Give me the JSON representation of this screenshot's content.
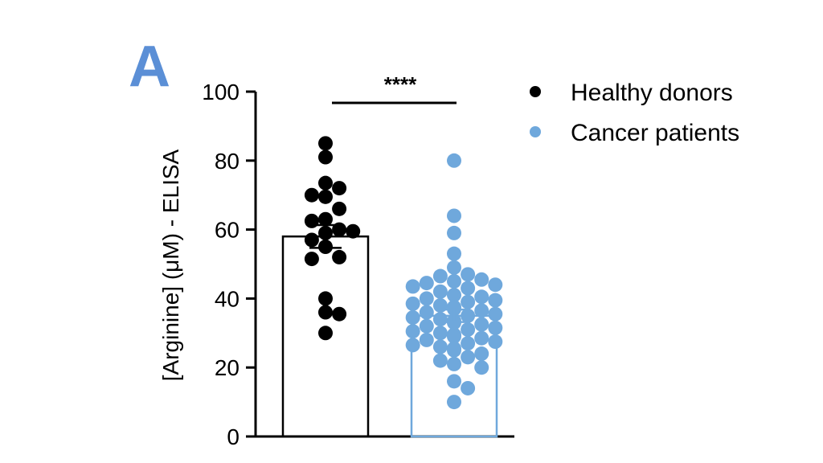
{
  "panel_label": "A",
  "colors": {
    "healthy": "#000000",
    "cancer": "#6fa8dc",
    "panel_label": "#5b8fd6",
    "axis": "#000000"
  },
  "chart_data": {
    "type": "scatter",
    "subtype": "bar-with-points",
    "title": "",
    "xlabel": "",
    "ylabel": "[Arginine] (μM) - ELISA",
    "ylim": [
      0,
      100
    ],
    "yticks": [
      0,
      20,
      40,
      60,
      80,
      100
    ],
    "significance": "****",
    "legend": {
      "placement": "top-right",
      "entries": [
        "Healthy donors",
        "Cancer patients"
      ]
    },
    "series": [
      {
        "name": "Healthy donors",
        "mean": 58,
        "sem": 3.3,
        "points": [
          85,
          81,
          73.5,
          72,
          70,
          69.5,
          66,
          63,
          62.5,
          60,
          59.5,
          59,
          57,
          55,
          52,
          51.5,
          40,
          36,
          35.5,
          30
        ]
      },
      {
        "name": "Cancer patients",
        "mean": 35,
        "sem": 1.8,
        "points": [
          80,
          64,
          59,
          53,
          49,
          47,
          46.5,
          45.5,
          45,
          44.5,
          44,
          43.5,
          43,
          42,
          41,
          40.5,
          40,
          39.5,
          39,
          38.5,
          38,
          37.5,
          37,
          36.5,
          36,
          35.5,
          35,
          34.5,
          34,
          33.5,
          33,
          32.5,
          32,
          31.5,
          31,
          30.5,
          30,
          29.5,
          29,
          28.5,
          28,
          27.5,
          27,
          26.5,
          26,
          25.5,
          25,
          24,
          23,
          22,
          21,
          20,
          16,
          14,
          10
        ]
      }
    ]
  }
}
